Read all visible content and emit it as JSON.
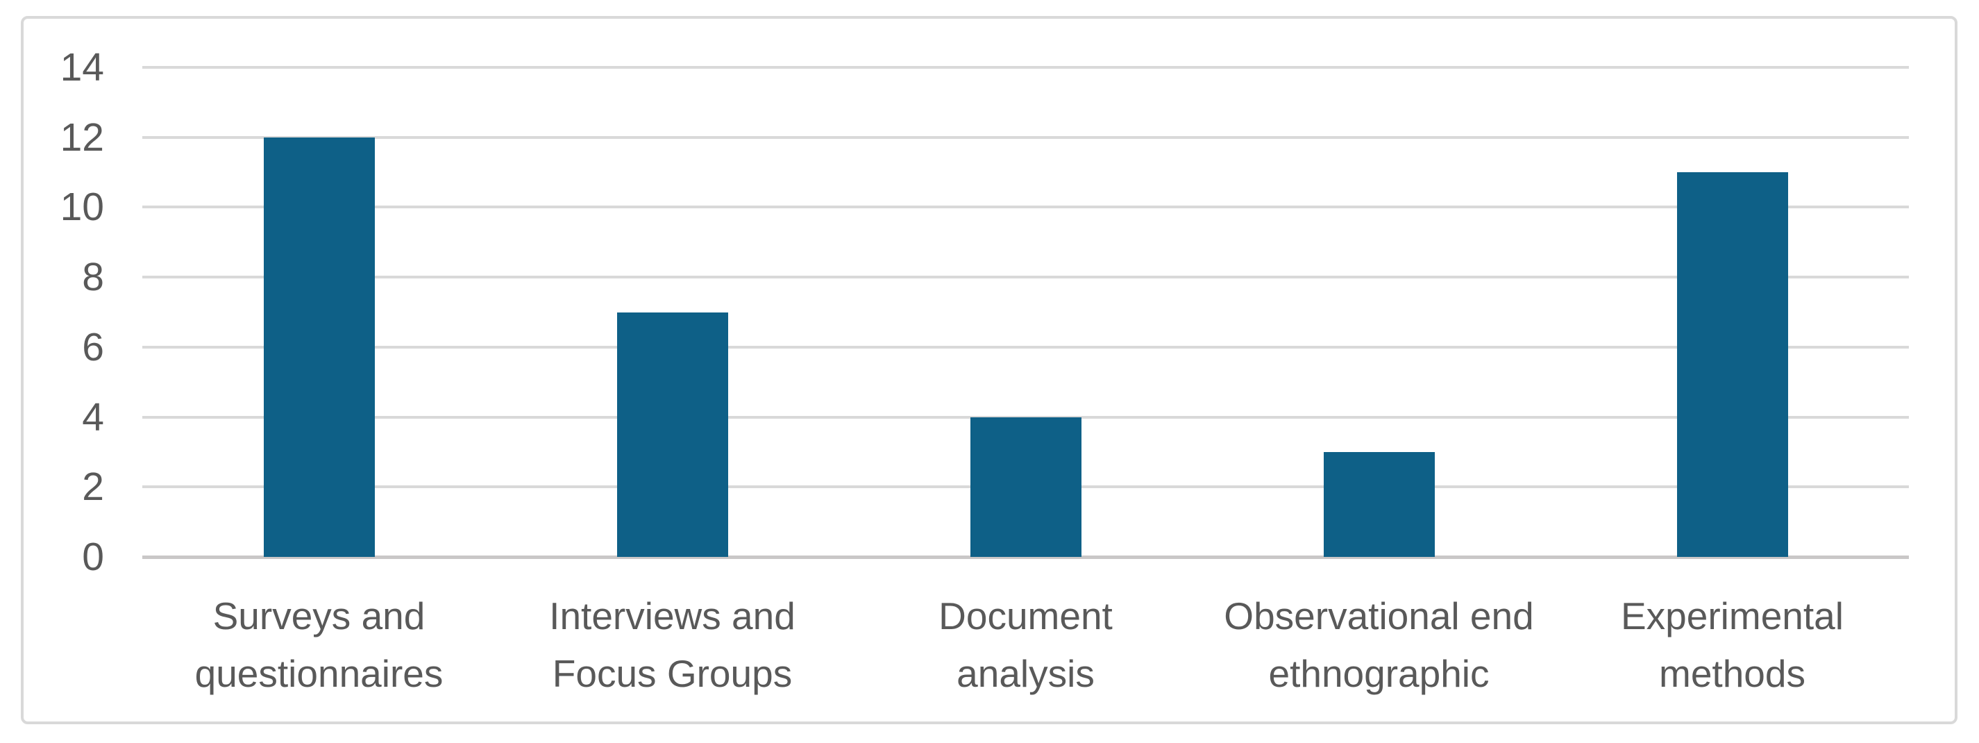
{
  "chart_data": {
    "type": "bar",
    "categories": [
      "Surveys and questionnaires",
      "Interviews and Focus Groups",
      "Document analysis",
      "Observational end ethnographic",
      "Experimental methods"
    ],
    "category_label_lines": [
      [
        "Surveys and",
        "questionnaires"
      ],
      [
        "Interviews and",
        "Focus Groups"
      ],
      [
        "Document",
        "analysis"
      ],
      [
        "Observational end",
        "ethnographic"
      ],
      [
        "Experimental",
        "methods"
      ]
    ],
    "values": [
      12,
      7,
      4,
      3,
      11
    ],
    "title": "",
    "xlabel": "",
    "ylabel": "",
    "ylim": [
      0,
      14
    ],
    "yticks": [
      0,
      2,
      4,
      6,
      8,
      10,
      12,
      14
    ],
    "grid": true,
    "legend": false,
    "colors": {
      "bar": "#0E6087",
      "gridline": "#D9D9D9",
      "axis_line": "#C9C7C7",
      "tick_text": "#595959",
      "category_text": "#595959",
      "frame_border": "#D9D9D9",
      "background": "#FFFFFF"
    }
  }
}
